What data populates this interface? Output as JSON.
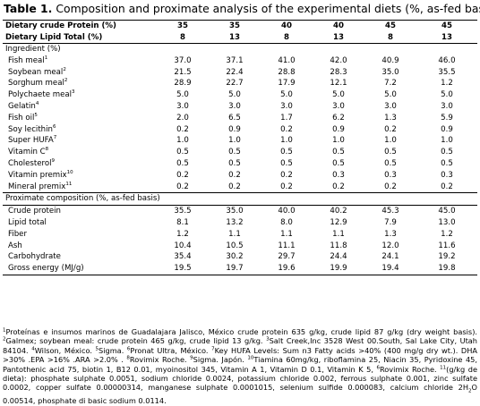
{
  "caption": {
    "number": "Table 1.",
    "title": "Composition and proximate analysis of the experimental diets (%, as-fed basis)."
  },
  "header": {
    "protein": {
      "label": "Dietary crude Protein (%)",
      "values": [
        "35",
        "35",
        "40",
        "40",
        "45",
        "45"
      ]
    },
    "lipid": {
      "label": "Dietary Lipid Total (%)",
      "values": [
        "8",
        "13",
        "8",
        "13",
        "8",
        "13"
      ]
    }
  },
  "sections": [
    {
      "title": "Ingredient (%)",
      "rows": [
        {
          "name": "Fish meal",
          "sup": "1",
          "values": [
            "37.0",
            "37.1",
            "41.0",
            "42.0",
            "40.9",
            "46.0"
          ]
        },
        {
          "name": "Soybean meal",
          "sup": "2",
          "values": [
            "21.5",
            "22.4",
            "28.8",
            "28.3",
            "35.0",
            "35.5"
          ]
        },
        {
          "name": "Sorghum meal",
          "sup": "2",
          "values": [
            "28.9",
            "22.7",
            "17.9",
            "12.1",
            "7.2",
            "1.2"
          ]
        },
        {
          "name": "Polychaete meal",
          "sup": "3",
          "values": [
            "5.0",
            "5.0",
            "5.0",
            "5.0",
            "5.0",
            "5.0"
          ]
        },
        {
          "name": "Gelatin",
          "sup": "4",
          "values": [
            "3.0",
            "3.0",
            "3.0",
            "3.0",
            "3.0",
            "3.0"
          ]
        },
        {
          "name": "Fish oil",
          "sup": "5",
          "values": [
            "2.0",
            "6.5",
            "1.7",
            "6.2",
            "1.3",
            "5.9"
          ]
        },
        {
          "name": "Soy lecithin",
          "sup": "6",
          "values": [
            "0.2",
            "0.9",
            "0.2",
            "0.9",
            "0.2",
            "0.9"
          ]
        },
        {
          "name": "Super HUFA",
          "sup": "7",
          "values": [
            "1.0",
            "1.0",
            "1.0",
            "1.0",
            "1.0",
            "1.0"
          ]
        },
        {
          "name": "Vitamin C",
          "sup": "8",
          "values": [
            "0.5",
            "0.5",
            "0.5",
            "0.5",
            "0.5",
            "0.5"
          ]
        },
        {
          "name": "Cholesterol",
          "sup": "9",
          "values": [
            "0.5",
            "0.5",
            "0.5",
            "0.5",
            "0.5",
            "0.5"
          ]
        },
        {
          "name": "Vitamin premix",
          "sup": "10",
          "values": [
            "0.2",
            "0.2",
            "0.2",
            "0.3",
            "0.3",
            "0.3"
          ]
        },
        {
          "name": "Mineral premix",
          "sup": "11",
          "values": [
            "0.2",
            "0.2",
            "0.2",
            "0.2",
            "0.2",
            "0.2"
          ]
        }
      ]
    },
    {
      "title": "Proximate composition (%, as-fed basis)",
      "rows": [
        {
          "name": "Crude protein",
          "sup": "",
          "values": [
            "35.5",
            "35.0",
            "40.0",
            "40.2",
            "45.3",
            "45.0"
          ]
        },
        {
          "name": "Lipid total",
          "sup": "",
          "values": [
            "8.1",
            "13.2",
            "8.0",
            "12.9",
            "7.9",
            "13.0"
          ]
        },
        {
          "name": "Fiber",
          "sup": "",
          "values": [
            "1.2",
            "1.1",
            "1.1",
            "1.1",
            "1.3",
            "1.2"
          ]
        },
        {
          "name": "Ash",
          "sup": "",
          "values": [
            "10.4",
            "10.5",
            "11.1",
            "11.8",
            "12.0",
            "11.6"
          ]
        },
        {
          "name": "Carbohydrate",
          "sup": "",
          "values": [
            "35.4",
            "30.2",
            "29.7",
            "24.4",
            "24.1",
            "19.2"
          ]
        },
        {
          "name": "Gross energy (MJ/g)",
          "sup": "",
          "values": [
            "19.5",
            "19.7",
            "19.6",
            "19.9",
            "19.4",
            "19.8"
          ]
        }
      ]
    }
  ],
  "footnotes": [
    {
      "sup": "1",
      "text": "Proteínas e insumos marinos de Guadalajara Jalisco, México crude protein 635 g/kg, crude lipid 87 g/kg (dry weight basis). "
    },
    {
      "sup": "2",
      "text": "Galmex; soybean meal: crude protein 465 g/kg, crude lipid 13 g/kg. "
    },
    {
      "sup": "3",
      "text": "Salt Creek,Inc 3528 West 00.South, Sal Lake City, Utah 84104. "
    },
    {
      "sup": "4",
      "text": "Wilson, México. "
    },
    {
      "sup": "5",
      "text": "Sigma. "
    },
    {
      "sup": "6",
      "text": "Pronat Ultra, México. "
    },
    {
      "sup": "7",
      "text": "Key HUFA Levels: Sum n3 Fatty acids >40% (400 mg/g dry wt.). DHA >30% .EPA >16% .ARA >2.0% . "
    },
    {
      "sup": "8",
      "text": "Rovimix Roche. "
    },
    {
      "sup": "9",
      "text": "Sigma. Japón. "
    },
    {
      "sup": "10",
      "text": "Tiamina 60mg/kg, riboflamina 25, Niacin 35, Pyridoxine 45, Pantothenic acid 75, biotin 1, B12 0.01, myoinositol 345, Vitamin A 1, Vitamin D 0.1, Vitamin K 5, "
    },
    {
      "sup": "6",
      "text": "Rovimix Roche. "
    },
    {
      "sup": "11",
      "text": "(g/kg de dieta): phosphate sulphate 0.0051, sodium chloride 0.0024, potassium chloride 0.002, ferrous sulphate 0.001, zinc sulfate 0.0002, copper sulfate 0.00000314, manganese sulphate 0.0001015, selenium sulfide 0.000083, calcium chloride 2H"
    },
    {
      "sub": "2",
      "text": "O 0.00514, phosphate di basic sodium 0.0114."
    }
  ]
}
